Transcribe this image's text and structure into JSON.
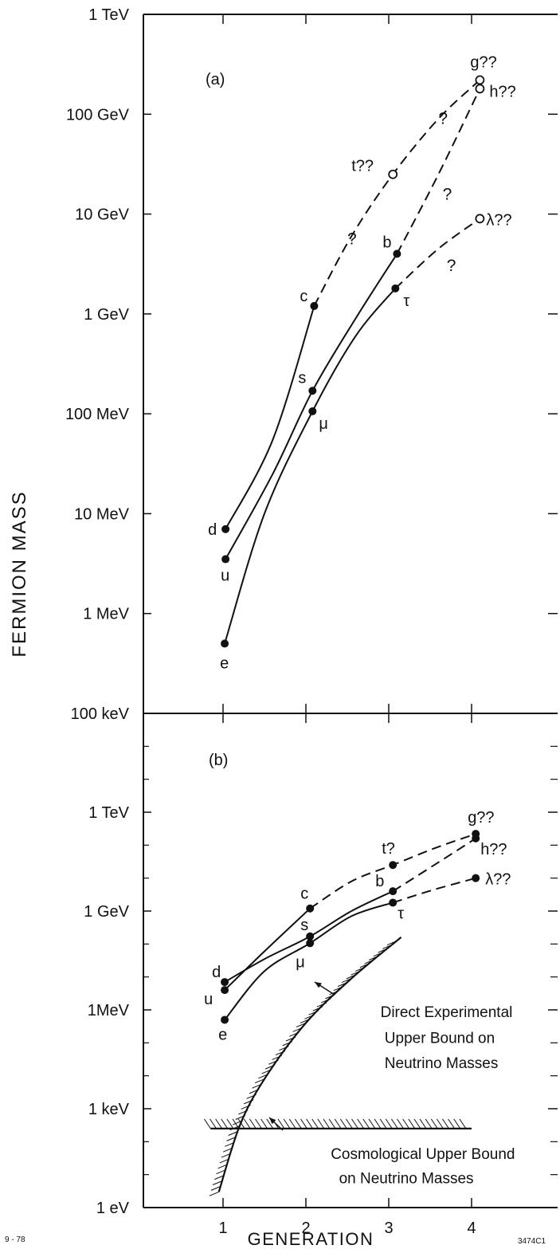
{
  "figure": {
    "ylabel": "FERMION MASS",
    "xlabel": "GENERATION",
    "left_code": "9 - 78",
    "right_code": "3474C1"
  },
  "chart_data": [
    {
      "type": "line",
      "panel_label": "(a)",
      "xlabel": "GENERATION",
      "ylabel": "FERMION MASS",
      "y_scale": "log",
      "y_unit": "MeV",
      "xlim": [
        0.5,
        4.5
      ],
      "ylim": [
        0.1,
        1000000
      ],
      "x_ticks": [
        1,
        2,
        3,
        4
      ],
      "y_tick_labels": [
        {
          "value": 1000000,
          "label": "1 TeV"
        },
        {
          "value": 100000,
          "label": "100 GeV"
        },
        {
          "value": 10000,
          "label": "10 GeV"
        },
        {
          "value": 1000,
          "label": "1 GeV"
        },
        {
          "value": 100,
          "label": "100 MeV"
        },
        {
          "value": 10,
          "label": "10 MeV"
        },
        {
          "value": 1,
          "label": "1 MeV"
        },
        {
          "value": 0.1,
          "label": "100 keV"
        }
      ],
      "points": [
        {
          "label": "d",
          "x": 1.03,
          "y": 7,
          "marker": "filled"
        },
        {
          "label": "u",
          "x": 1.03,
          "y": 3.5,
          "marker": "filled"
        },
        {
          "label": "e",
          "x": 1.02,
          "y": 0.5,
          "marker": "filled"
        },
        {
          "label": "c",
          "x": 2.1,
          "y": 1200,
          "marker": "filled"
        },
        {
          "label": "s",
          "x": 2.08,
          "y": 170,
          "marker": "filled"
        },
        {
          "label": "μ",
          "x": 2.08,
          "y": 106,
          "marker": "filled"
        },
        {
          "label": "t??",
          "x": 3.05,
          "y": 25000,
          "marker": "open"
        },
        {
          "label": "b",
          "x": 3.1,
          "y": 4000,
          "marker": "filled"
        },
        {
          "label": "τ",
          "x": 3.08,
          "y": 1800,
          "marker": "filled"
        },
        {
          "label": "g??",
          "x": 4.1,
          "y": 220000,
          "marker": "open"
        },
        {
          "label": "h??",
          "x": 4.1,
          "y": 180000,
          "marker": "open"
        },
        {
          "label": "λ??",
          "x": 4.1,
          "y": 9000,
          "marker": "open"
        }
      ],
      "curves": [
        {
          "style": "solid",
          "points": [
            [
              1.03,
              7
            ],
            [
              1.6,
              55
            ],
            [
              2.1,
              1200
            ]
          ]
        },
        {
          "style": "dashed",
          "points": [
            [
              2.1,
              1200
            ],
            [
              2.55,
              6000
            ],
            [
              3.05,
              25000
            ],
            [
              3.6,
              90000
            ],
            [
              4.1,
              220000
            ]
          ]
        },
        {
          "style": "solid",
          "points": [
            [
              1.03,
              3.5
            ],
            [
              1.6,
              25
            ],
            [
              2.08,
              170
            ],
            [
              2.6,
              900
            ],
            [
              3.1,
              4000
            ]
          ]
        },
        {
          "style": "dashed",
          "points": [
            [
              3.1,
              4000
            ],
            [
              3.6,
              25000
            ],
            [
              4.1,
              180000
            ]
          ]
        },
        {
          "style": "solid",
          "points": [
            [
              1.02,
              0.5
            ],
            [
              1.5,
              10
            ],
            [
              2.08,
              106
            ],
            [
              2.6,
              600
            ],
            [
              3.08,
              1800
            ]
          ]
        },
        {
          "style": "dashed",
          "points": [
            [
              3.08,
              1800
            ],
            [
              3.6,
              4500
            ],
            [
              4.1,
              9000
            ]
          ]
        }
      ],
      "annotations": [
        {
          "text": "?",
          "x": 2.5,
          "y": 5000
        },
        {
          "text": "?",
          "x": 3.6,
          "y": 80000
        },
        {
          "text": "?",
          "x": 3.65,
          "y": 14000
        },
        {
          "text": "?",
          "x": 3.7,
          "y": 2700
        }
      ]
    },
    {
      "type": "line",
      "panel_label": "(b)",
      "xlabel": "GENERATION",
      "y_scale": "log",
      "y_unit": "eV",
      "xlim": [
        0.5,
        4.5
      ],
      "ylim": [
        1,
        1000000000000000
      ],
      "x_ticks": [
        1,
        2,
        3,
        4
      ],
      "x_tick_labels": [
        "1",
        "2",
        "3",
        "4"
      ],
      "y_tick_labels": [
        {
          "value": 1000000000000,
          "label": "1 TeV"
        },
        {
          "value": 1000000000,
          "label": "1 GeV"
        },
        {
          "value": 1000000,
          "label": "1MeV"
        },
        {
          "value": 1000,
          "label": "1 keV"
        },
        {
          "value": 1,
          "label": "1  eV"
        }
      ],
      "points": [
        {
          "label": "d",
          "x": 1.02,
          "y": 7000000,
          "marker": "filled"
        },
        {
          "label": "u",
          "x": 1.02,
          "y": 4000000,
          "marker": "filled"
        },
        {
          "label": "e",
          "x": 1.02,
          "y": 500000,
          "marker": "filled"
        },
        {
          "label": "c",
          "x": 2.05,
          "y": 1200000000,
          "marker": "filled"
        },
        {
          "label": "s",
          "x": 2.05,
          "y": 170000000,
          "marker": "filled"
        },
        {
          "label": "μ",
          "x": 2.05,
          "y": 106000000,
          "marker": "filled"
        },
        {
          "label": "t?",
          "x": 3.05,
          "y": 25000000000,
          "marker": "filled"
        },
        {
          "label": "b",
          "x": 3.05,
          "y": 4000000000,
          "marker": "filled"
        },
        {
          "label": "τ",
          "x": 3.05,
          "y": 1800000000,
          "marker": "filled"
        },
        {
          "label": "g??",
          "x": 4.05,
          "y": 220000000000,
          "marker": "filled"
        },
        {
          "label": "h??",
          "x": 4.05,
          "y": 160000000000,
          "marker": "filled"
        },
        {
          "label": "λ??",
          "x": 4.05,
          "y": 10000000000,
          "marker": "filled"
        }
      ],
      "curves": [
        {
          "style": "solid",
          "points": [
            [
              1.02,
              4000000
            ],
            [
              1.5,
              60000000
            ],
            [
              2.05,
              1200000000
            ]
          ]
        },
        {
          "style": "dashed",
          "points": [
            [
              2.05,
              1200000000
            ],
            [
              2.55,
              8000000000
            ],
            [
              3.05,
              25000000000
            ],
            [
              3.55,
              80000000000
            ],
            [
              4.05,
              220000000000
            ]
          ]
        },
        {
          "style": "solid",
          "points": [
            [
              1.02,
              7000000
            ],
            [
              1.5,
              35000000
            ],
            [
              2.05,
              170000000
            ],
            [
              2.55,
              1000000000
            ],
            [
              3.05,
              4000000000
            ]
          ]
        },
        {
          "style": "dashed",
          "points": [
            [
              3.05,
              4000000000
            ],
            [
              3.55,
              25000000000
            ],
            [
              4.05,
              160000000000
            ]
          ]
        },
        {
          "style": "solid",
          "points": [
            [
              1.02,
              500000
            ],
            [
              1.5,
              15000000
            ],
            [
              2.05,
              106000000
            ],
            [
              2.55,
              700000000
            ],
            [
              3.05,
              1800000000
            ]
          ]
        },
        {
          "style": "dashed",
          "points": [
            [
              3.05,
              1800000000
            ],
            [
              3.55,
              4500000000
            ],
            [
              4.05,
              10000000000
            ]
          ]
        }
      ],
      "bounds": [
        {
          "name": "Direct Experimental Upper Bound on Neutrino Masses",
          "points": [
            [
              0.95,
              3
            ],
            [
              1.2,
              300
            ],
            [
              1.5,
              8000
            ],
            [
              2.0,
              400000
            ],
            [
              2.55,
              9000000
            ],
            [
              3.15,
              160000000
            ]
          ]
        },
        {
          "name": "Cosmological Upper Bound on Neutrino Masses",
          "points": [
            [
              0.85,
              250
            ],
            [
              4.0,
              250
            ]
          ]
        }
      ],
      "annotations": [
        {
          "text": "Direct Experimental",
          "x": 2.9,
          "y": 600000
        },
        {
          "text": "Upper Bound on",
          "x": 2.95,
          "y": 100000
        },
        {
          "text": "Neutrino Masses",
          "x": 2.95,
          "y": 17000
        },
        {
          "text": "Cosmological Upper Bound",
          "x": 2.3,
          "y": 30
        },
        {
          "text": "on Neutrino Masses",
          "x": 2.4,
          "y": 5.5
        }
      ]
    }
  ]
}
